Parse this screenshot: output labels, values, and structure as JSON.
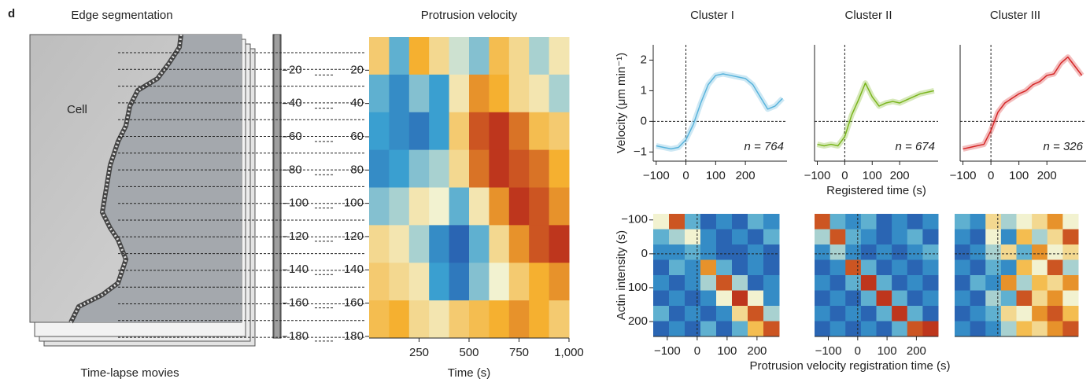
{
  "panel_label": "d",
  "edge_panel": {
    "title": "Edge segmentation",
    "cell_label": "Cell",
    "caption": "Time-lapse movies"
  },
  "chart_data": [
    {
      "type": "heatmap",
      "title": "Protrusion velocity",
      "xlabel": "Time (s)",
      "xlim": [
        0,
        1000
      ],
      "xticks": [
        250,
        500,
        750,
        {
          "value": 1000,
          "label": "1,000"
        }
      ],
      "ylim": [
        0,
        181
      ],
      "y_reversed": true,
      "yticks": [
        20,
        40,
        60,
        80,
        100,
        120,
        140,
        160,
        180
      ],
      "zlim": [
        -1,
        1
      ],
      "z": [
        [
          0.3,
          -0.4,
          0.5,
          0.2,
          -0.1,
          -0.3,
          0.4,
          0.2,
          -0.2,
          0.1
        ],
        [
          -0.4,
          -0.6,
          -0.3,
          -0.5,
          0.1,
          0.6,
          0.5,
          0.2,
          0.1,
          -0.2
        ],
        [
          -0.5,
          -0.6,
          -0.7,
          -0.5,
          0.3,
          0.8,
          0.9,
          0.7,
          0.4,
          0.3
        ],
        [
          -0.6,
          -0.5,
          -0.3,
          -0.2,
          0.2,
          0.7,
          0.9,
          0.8,
          0.7,
          0.5
        ],
        [
          -0.3,
          -0.2,
          0.1,
          0.0,
          -0.4,
          0.1,
          0.6,
          0.9,
          0.8,
          0.6
        ],
        [
          0.2,
          0.1,
          -0.2,
          -0.6,
          -0.8,
          -0.4,
          0.2,
          0.6,
          0.8,
          0.9
        ],
        [
          0.3,
          0.2,
          0.1,
          -0.5,
          -0.7,
          -0.3,
          0.0,
          0.3,
          0.5,
          0.6
        ],
        [
          0.4,
          0.5,
          0.2,
          0.1,
          0.3,
          0.4,
          0.5,
          0.6,
          0.5,
          0.3
        ]
      ]
    },
    {
      "type": "line",
      "title": "Cluster I",
      "ylabel": "Velocity (μm min⁻¹)",
      "annotation": "n = 764",
      "color": "#5ab4dc",
      "x": [
        -100,
        -75,
        -50,
        -25,
        0,
        25,
        50,
        75,
        100,
        125,
        150,
        175,
        200,
        225,
        250,
        275,
        300,
        325
      ],
      "values": [
        -0.8,
        -0.85,
        -0.9,
        -0.85,
        -0.6,
        -0.1,
        0.6,
        1.2,
        1.5,
        1.55,
        1.5,
        1.45,
        1.4,
        1.2,
        0.8,
        0.4,
        0.5,
        0.75
      ],
      "xlim": [
        -110,
        340
      ],
      "ylim": [
        -1.3,
        2.5
      ],
      "xticks": [
        {
          "value": -100,
          "label": "−100"
        },
        0,
        100,
        200
      ],
      "yticks": [
        {
          "value": -1,
          "label": "−1"
        },
        0,
        1,
        2
      ]
    },
    {
      "type": "line",
      "title": "Cluster II",
      "xlabel": "Registered time (s)",
      "annotation": "n = 674",
      "color": "#7ab51d",
      "x": [
        -100,
        -75,
        -50,
        -25,
        0,
        25,
        50,
        75,
        100,
        125,
        150,
        175,
        200,
        225,
        250,
        275,
        300,
        325
      ],
      "values": [
        -0.75,
        -0.8,
        -0.75,
        -0.8,
        -0.5,
        0.2,
        0.7,
        1.25,
        0.8,
        0.5,
        0.6,
        0.65,
        0.6,
        0.7,
        0.8,
        0.9,
        0.95,
        1.0
      ],
      "xlim": [
        -110,
        340
      ],
      "ylim": [
        -1.3,
        2.5
      ],
      "xticks": [
        {
          "value": -100,
          "label": "−100"
        },
        0,
        100,
        200
      ]
    },
    {
      "type": "line",
      "title": "Cluster III",
      "annotation": "n = 326",
      "color": "#d62728",
      "x": [
        -100,
        -75,
        -50,
        -25,
        0,
        25,
        50,
        75,
        100,
        125,
        150,
        175,
        200,
        225,
        250,
        275,
        300,
        325
      ],
      "values": [
        -0.9,
        -0.85,
        -0.8,
        -0.75,
        -0.3,
        0.3,
        0.6,
        0.75,
        0.9,
        1.0,
        1.2,
        1.3,
        1.5,
        1.55,
        1.9,
        2.1,
        1.8,
        1.5
      ],
      "xlim": [
        -110,
        340
      ],
      "ylim": [
        -1.3,
        2.5
      ],
      "xticks": [
        {
          "value": -100,
          "label": "−100"
        },
        0,
        100,
        200
      ]
    },
    {
      "type": "heatmap",
      "ylabel": "Actin intensity (s)",
      "xlim": [
        -147,
        274
      ],
      "ylim": [
        -118,
        244
      ],
      "y_reversed": true,
      "zlim": [
        0,
        1
      ],
      "xticks": [
        {
          "value": -100,
          "label": "−100"
        },
        0,
        100,
        200
      ],
      "yticks": [
        {
          "value": -100,
          "label": "−100"
        },
        0,
        100,
        200
      ],
      "z": [
        [
          0.5,
          0.9,
          0.3,
          0.1,
          0.2,
          0.1,
          0.3,
          0.2
        ],
        [
          0.3,
          0.4,
          0.5,
          0.2,
          0.1,
          0.2,
          0.1,
          0.3
        ],
        [
          0.2,
          0.2,
          0.3,
          0.2,
          0.1,
          0.1,
          0.2,
          0.1
        ],
        [
          0.1,
          0.3,
          0.2,
          0.8,
          0.3,
          0.1,
          0.2,
          0.1
        ],
        [
          0.2,
          0.1,
          0.2,
          0.4,
          0.9,
          0.4,
          0.1,
          0.2
        ],
        [
          0.1,
          0.2,
          0.1,
          0.2,
          0.5,
          0.95,
          0.5,
          0.2
        ],
        [
          0.3,
          0.1,
          0.2,
          0.1,
          0.2,
          0.6,
          0.9,
          0.4
        ],
        [
          0.1,
          0.2,
          0.1,
          0.3,
          0.1,
          0.3,
          0.7,
          0.9
        ]
      ]
    },
    {
      "type": "heatmap",
      "xlabel": "Protrusion velocity registration time (s)",
      "xlim": [
        -147,
        274
      ],
      "ylim": [
        -118,
        244
      ],
      "y_reversed": true,
      "zlim": [
        0,
        1
      ],
      "xticks": [
        {
          "value": -100,
          "label": "−100"
        },
        0,
        100,
        200
      ],
      "z": [
        [
          0.9,
          0.3,
          0.2,
          0.3,
          0.1,
          0.2,
          0.1,
          0.2
        ],
        [
          0.4,
          0.9,
          0.3,
          0.2,
          0.1,
          0.2,
          0.3,
          0.1
        ],
        [
          0.2,
          0.4,
          0.2,
          0.1,
          0.2,
          0.1,
          0.2,
          0.3
        ],
        [
          0.1,
          0.2,
          0.9,
          0.3,
          0.1,
          0.2,
          0.1,
          0.2
        ],
        [
          0.2,
          0.1,
          0.3,
          0.95,
          0.3,
          0.1,
          0.2,
          0.1
        ],
        [
          0.1,
          0.2,
          0.1,
          0.3,
          0.95,
          0.3,
          0.1,
          0.2
        ],
        [
          0.2,
          0.1,
          0.2,
          0.1,
          0.3,
          0.95,
          0.3,
          0.1
        ],
        [
          0.1,
          0.2,
          0.1,
          0.2,
          0.1,
          0.3,
          0.9,
          0.95
        ]
      ]
    },
    {
      "type": "heatmap",
      "xlim": [
        -147,
        274
      ],
      "ylim": [
        -118,
        244
      ],
      "y_reversed": true,
      "zlim": [
        0,
        1
      ],
      "z": [
        [
          0.3,
          0.2,
          0.6,
          0.4,
          0.5,
          0.6,
          0.8,
          0.5
        ],
        [
          0.2,
          0.1,
          0.5,
          0.2,
          0.7,
          0.4,
          0.6,
          0.9
        ],
        [
          0.1,
          0.2,
          0.4,
          0.6,
          0.3,
          0.8,
          0.5,
          0.6
        ],
        [
          0.2,
          0.1,
          0.3,
          0.2,
          0.7,
          0.5,
          0.9,
          0.4
        ],
        [
          0.1,
          0.3,
          0.2,
          0.8,
          0.4,
          0.7,
          0.6,
          0.8
        ],
        [
          0.2,
          0.1,
          0.4,
          0.3,
          0.9,
          0.6,
          0.8,
          0.5
        ],
        [
          0.1,
          0.2,
          0.3,
          0.6,
          0.5,
          0.8,
          0.9,
          0.7
        ],
        [
          0.2,
          0.1,
          0.2,
          0.4,
          0.7,
          0.6,
          0.8,
          0.9
        ]
      ]
    }
  ]
}
